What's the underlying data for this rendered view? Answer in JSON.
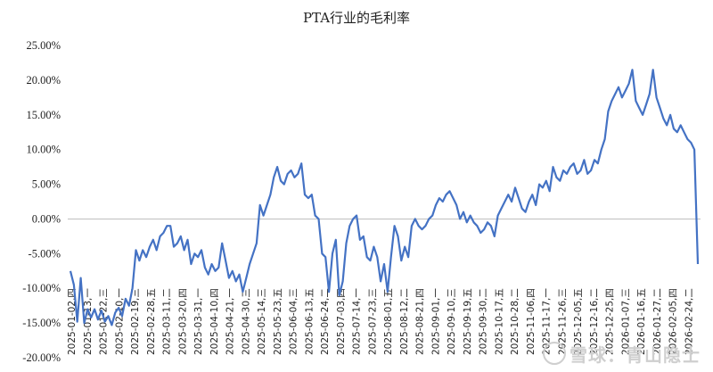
{
  "chart_data": {
    "type": "line",
    "title": "PTA行业的毛利率",
    "xlabel": "",
    "ylabel": "",
    "ylim": [
      -20,
      25
    ],
    "yticks": [
      "25.00%",
      "20.00%",
      "15.00%",
      "10.00%",
      "5.00%",
      "0.00%",
      "-5.00%",
      "-10.00%",
      "-15.00%",
      "-20.00%"
    ],
    "xticks": [
      "2025-01-02,四",
      "2025-01-13,一",
      "2025-01-22,三",
      "2025-02-10,一",
      "2025-02-19,三",
      "2025-02-28,五",
      "2025-03-11,二",
      "2025-03-20,四",
      "2025-03-31,一",
      "2025-04-10,四",
      "2025-04-21,一",
      "2025-04-30,三",
      "2025-05-14,三",
      "2025-05-23,五",
      "2025-06-04,三",
      "2025-06-13,五",
      "2025-06-24,二",
      "2025-07-03,四",
      "2025-07-14,一",
      "2025-07-23,三",
      "2025-08-01,五",
      "2025-08-12,二",
      "2025-08-21,四",
      "2025-09-01,一",
      "2025-09-10,三",
      "2025-09-19,五",
      "2025-09-30,二",
      "2025-10-17,五",
      "2025-10-28,二",
      "2025-11-06,四",
      "2025-11-17,一",
      "2025-11-26,三",
      "2025-12-05,五",
      "2025-12-16,二",
      "2025-12-25,四",
      "2026-01-07,三",
      "2026-01-16,五",
      "2026-01-27,二",
      "2026-02-05,四",
      "2026-02-24,二"
    ],
    "grid": false,
    "legend": "none",
    "series": [
      {
        "color": "#4472C4",
        "values": [
          -7.5,
          -9.5,
          -14.8,
          -8.5,
          -15.0,
          -13.0,
          -14.2,
          -13.0,
          -14.5,
          -13.2,
          -14.8,
          -14.0,
          -15.3,
          -13.5,
          -12.8,
          -14.0,
          -11.5,
          -12.5,
          -10.0,
          -4.5,
          -6.0,
          -4.5,
          -5.5,
          -4.0,
          -3.0,
          -4.5,
          -2.5,
          -2.0,
          -1.0,
          -1.0,
          -4.0,
          -3.5,
          -2.5,
          -4.5,
          -3.0,
          -6.5,
          -5.0,
          -5.5,
          -4.5,
          -7.0,
          -8.0,
          -6.5,
          -7.5,
          -7.0,
          -3.5,
          -6.0,
          -8.5,
          -7.5,
          -9.0,
          -8.0,
          -10.5,
          -8.5,
          -6.5,
          -5.0,
          -3.5,
          2.0,
          0.5,
          2.0,
          3.5,
          6.0,
          7.5,
          5.5,
          5.0,
          6.5,
          7.0,
          6.0,
          6.5,
          8.0,
          3.5,
          3.0,
          3.5,
          0.5,
          0.0,
          -5.0,
          -5.5,
          -10.5,
          -5.0,
          -3.0,
          -11.0,
          -9.0,
          -3.5,
          -1.0,
          0.0,
          0.5,
          -3.0,
          -2.5,
          -5.5,
          -6.0,
          -4.0,
          -5.5,
          -9.0,
          -6.5,
          -10.5,
          -5.5,
          -1.0,
          -2.5,
          -6.0,
          -4.0,
          -5.5,
          -1.0,
          0.0,
          -1.0,
          -1.5,
          -1.0,
          0.0,
          0.5,
          2.0,
          3.0,
          2.5,
          3.5,
          4.0,
          3.0,
          2.0,
          0.0,
          1.0,
          -0.5,
          0.5,
          -0.5,
          -1.0,
          -2.0,
          -1.5,
          -0.5,
          -1.0,
          -2.5,
          0.5,
          1.5,
          2.5,
          3.5,
          2.5,
          4.5,
          3.0,
          1.5,
          1.0,
          2.5,
          3.5,
          2.0,
          5.0,
          4.5,
          5.5,
          4.0,
          7.5,
          6.0,
          5.5,
          7.0,
          6.5,
          7.5,
          8.0,
          6.5,
          7.0,
          8.5,
          6.5,
          7.0,
          8.5,
          8.0,
          10.0,
          11.5,
          15.5,
          17.0,
          18.0,
          19.0,
          17.5,
          18.5,
          19.5,
          21.5,
          17.0,
          16.0,
          15.0,
          16.5,
          18.0,
          21.5,
          17.5,
          16.0,
          14.5,
          13.5,
          15.0,
          13.0,
          12.5,
          13.5,
          12.5,
          11.5,
          11.0,
          10.0,
          -6.5
        ]
      }
    ]
  },
  "watermark": {
    "text": "雪球：青山隐士",
    "icon": "snowball-logo-icon"
  }
}
